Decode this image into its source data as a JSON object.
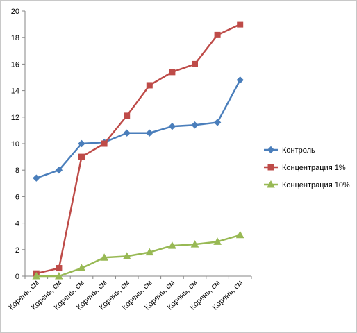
{
  "chart_data": {
    "type": "line",
    "categories": [
      "Корень, см",
      "Корень, см",
      "Корень, см",
      "Корень, см",
      "Корень, см",
      "Корень, см",
      "Корень, см",
      "Корень, см",
      "Корень, см",
      "Корень, см"
    ],
    "series": [
      {
        "name": "Контроль",
        "color": "#4a7ebb",
        "marker": "diamond",
        "values": [
          7.4,
          8.0,
          10.0,
          10.1,
          10.8,
          10.8,
          11.3,
          11.4,
          11.6,
          14.8
        ]
      },
      {
        "name": "Концентрация 1%",
        "color": "#be4b48",
        "marker": "square",
        "values": [
          0.2,
          0.6,
          9.0,
          10.0,
          12.1,
          14.4,
          15.4,
          16.0,
          18.2,
          19.0
        ]
      },
      {
        "name": "Концентрация 10%",
        "color": "#98b954",
        "marker": "triangle",
        "values": [
          0.0,
          0.0,
          0.6,
          1.4,
          1.5,
          1.8,
          2.3,
          2.4,
          2.6,
          3.1
        ]
      }
    ],
    "yticks": [
      "0",
      "2",
      "4",
      "6",
      "8",
      "10",
      "12",
      "14",
      "16",
      "18",
      "20"
    ],
    "ylim": [
      0,
      20
    ],
    "ystep": 2,
    "grid": false,
    "legend_position": "right",
    "title": "",
    "xlabel": "",
    "ylabel": ""
  }
}
